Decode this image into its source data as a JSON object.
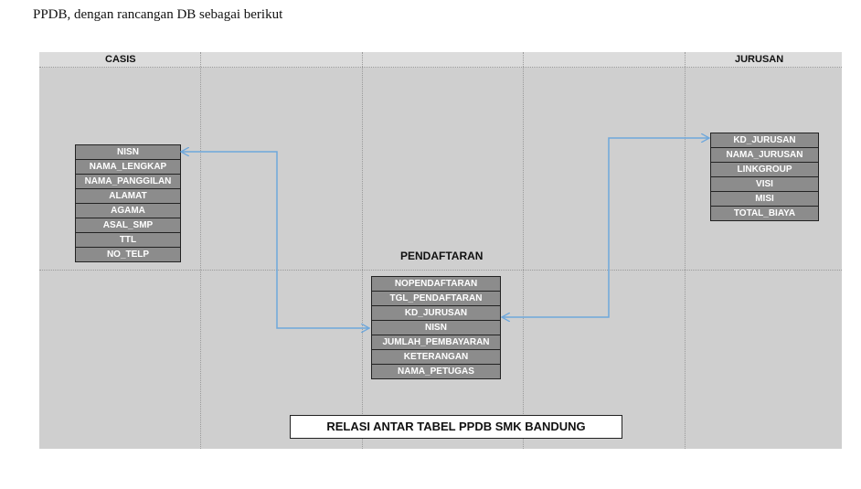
{
  "intro_text": "PPDB, dengan rancangan DB sebagai berikut",
  "headers": {
    "casis": "CASIS",
    "jurusan": "JURUSAN"
  },
  "tables": {
    "casis": {
      "fields": [
        "NISN",
        "NAMA_LENGKAP",
        "NAMA_PANGGILAN",
        "ALAMAT",
        "AGAMA",
        "ASAL_SMP",
        "TTL",
        "NO_TELP"
      ]
    },
    "jurusan": {
      "fields": [
        "KD_JURUSAN",
        "NAMA_JURUSAN",
        "LINKGROUP",
        "VISI",
        "MISI",
        "TOTAL_BIAYA"
      ]
    },
    "pendaftaran": {
      "title": "PENDAFTARAN",
      "fields": [
        "NOPENDAFTARAN",
        "TGL_PENDAFTARAN",
        "KD_JURUSAN",
        "NISN",
        "JUMLAH_PEMBAYARAN",
        "KETERANGAN",
        "NAMA_PETUGAS"
      ]
    }
  },
  "caption": "RELASI ANTAR TABEL PPDB SMK BANDUNG",
  "colors": {
    "background": "#cfcfcf",
    "field_fill": "#8c8c8c",
    "connector": "#6fa8dc"
  }
}
